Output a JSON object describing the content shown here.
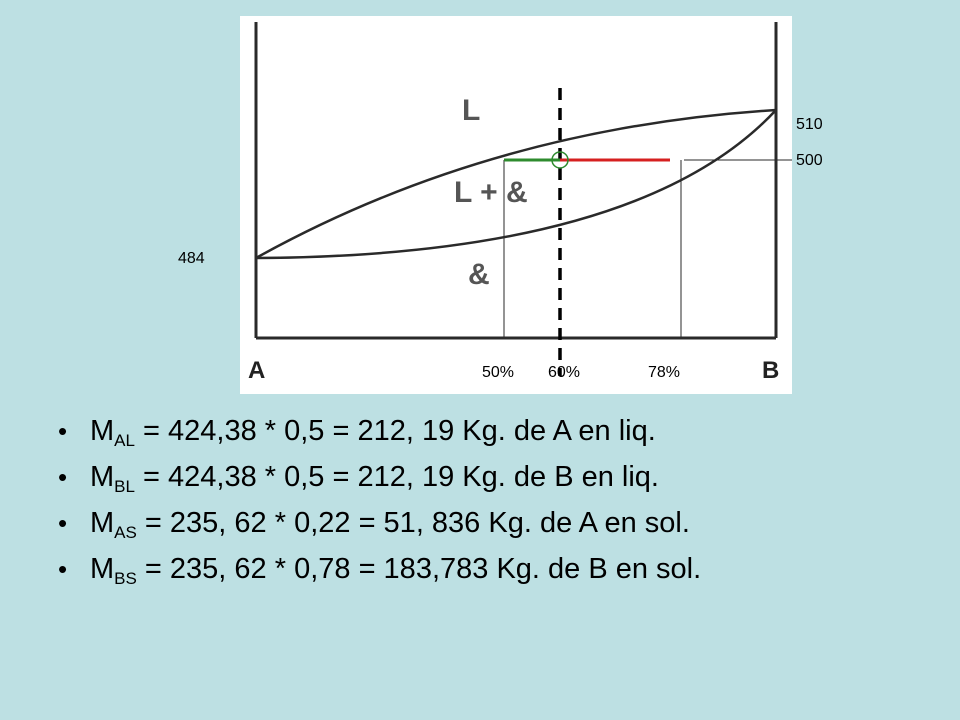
{
  "diagram": {
    "temperatures": {
      "liquidus_top": "510",
      "horizontal": "500",
      "left_melt": "484"
    },
    "compositions": [
      "50%",
      "60%",
      "78%"
    ],
    "axis_ends": {
      "left": "A",
      "right": "B"
    },
    "regions": {
      "liquid": "L",
      "two_phase": "L + &",
      "solid": "&"
    },
    "colors": {
      "liquid_tie": "#2e8b2e",
      "solid_tie": "#d62020",
      "background": "#bde0e3"
    }
  },
  "bullets": [
    {
      "symbol": "M",
      "sub": "AL",
      "text": " = 424,38 * 0,5 = 212, 19 Kg. de A en liq."
    },
    {
      "symbol": "M",
      "sub": "BL",
      "text": " = 424,38 * 0,5 = 212, 19 Kg. de B en liq."
    },
    {
      "symbol": "M",
      "sub": "AS",
      "text": " = 235, 62 * 0,22 = 51, 836 Kg. de A en sol."
    },
    {
      "symbol": "M",
      "sub": "BS",
      "text": " = 235, 62 * 0,78 = 183,783 Kg. de B en sol."
    }
  ]
}
